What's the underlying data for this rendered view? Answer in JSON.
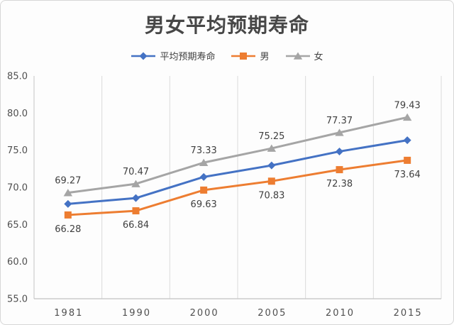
{
  "title": "男女平均预期寿命",
  "legend": {
    "items": [
      {
        "label": "平均预期寿命",
        "marker": "diamond-marker-icon"
      },
      {
        "label": "男",
        "marker": "square-marker-icon"
      },
      {
        "label": "女",
        "marker": "triangle-marker-icon"
      }
    ]
  },
  "chart_data": {
    "type": "line",
    "title": "男女平均预期寿命",
    "categories": [
      "1981",
      "1990",
      "2000",
      "2005",
      "2010",
      "2015"
    ],
    "series": [
      {
        "name": "平均预期寿命",
        "color": "#4472C4",
        "marker": "diamond",
        "values": [
          67.77,
          68.55,
          71.4,
          72.95,
          74.83,
          76.34
        ],
        "data_labels": false
      },
      {
        "name": "男",
        "color": "#ED7D31",
        "marker": "square",
        "values": [
          66.28,
          66.84,
          69.63,
          70.83,
          72.38,
          73.64
        ],
        "data_labels": true,
        "label_position": "below",
        "labels": [
          "66.28",
          "66.84",
          "69.63",
          "70.83",
          "72.38",
          "73.64"
        ]
      },
      {
        "name": "女",
        "color": "#A5A5A5",
        "marker": "triangle",
        "values": [
          69.27,
          70.47,
          73.33,
          75.25,
          77.37,
          79.43
        ],
        "data_labels": true,
        "label_position": "above",
        "labels": [
          "69.27",
          "70.47",
          "73.33",
          "75.25",
          "77.37",
          "79.43"
        ]
      }
    ],
    "ylim": [
      55,
      85
    ],
    "ytick_step": 5,
    "ytick_labels": [
      "85.0",
      "80.0",
      "75.0",
      "70.0",
      "65.0",
      "60.0",
      "55.0"
    ],
    "grid": "vertical-only",
    "legend_position": "top"
  },
  "colors": {
    "axis": "#c2c2c2",
    "grid": "#dbdbdb",
    "tick_text": "#4f4f4f",
    "data_label_text": "#3f3f3f",
    "title_text": "#474747"
  }
}
